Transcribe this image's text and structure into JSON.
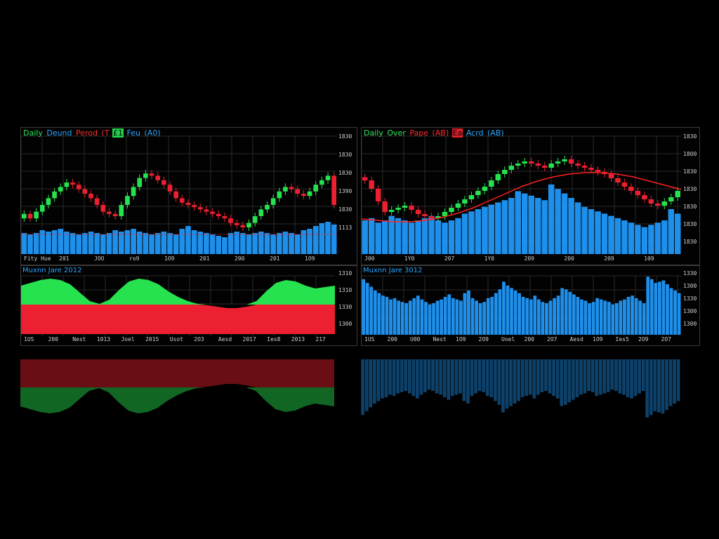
{
  "colors": {
    "up": "#27e24f",
    "down": "#ec2030",
    "volume": "#1e90ec",
    "trend": "#ff2020",
    "grid": "#2a2a2a",
    "price_line": "#e02020"
  },
  "panels": {
    "top_left": {
      "title": [
        {
          "text": "Daily",
          "cls": "t-green"
        },
        {
          "text": "Deund",
          "cls": "t-blue"
        },
        {
          "text": "Perod",
          "cls": "t-red"
        },
        {
          "text": "(T",
          "cls": "t-red"
        },
        {
          "text": "£1",
          "cls": "chip-g"
        },
        {
          "text": "Feu",
          "cls": "t-blue"
        },
        {
          "text": "(A0)",
          "cls": "t-blue"
        }
      ],
      "y_ticks": [
        "1830",
        "1830",
        "1830",
        "1390",
        "1830",
        "1113"
      ],
      "x_ticks": [
        "Fity Hue",
        "201",
        "JOO",
        "ro9",
        "1O9",
        "201",
        "200",
        "201",
        "1O9"
      ],
      "flag_left": "Fity Hue",
      "flag_right": "1830"
    },
    "top_right": {
      "title": [
        {
          "text": "Daily",
          "cls": "t-green"
        },
        {
          "text": "Over",
          "cls": "t-green"
        },
        {
          "text": "Pape",
          "cls": "t-red"
        },
        {
          "text": "(AB)",
          "cls": "t-red"
        },
        {
          "text": "Ea",
          "cls": "chip-r"
        },
        {
          "text": "Acrd",
          "cls": "t-blue"
        },
        {
          "text": "(AB)",
          "cls": "t-blue"
        }
      ],
      "y_ticks": [
        "1830",
        "1800",
        "1830",
        "1830",
        "1830",
        "1830",
        "1830"
      ],
      "x_ticks": [
        "J00",
        "1Y0",
        "207",
        "1Y0",
        "209",
        "200",
        "209",
        "109"
      ]
    },
    "bottom_left": {
      "title": "Muxnn Jare 2012",
      "y_ticks": [
        "1310",
        "1310",
        "1330",
        "1300"
      ],
      "x_ticks": [
        "1US",
        "200",
        "Nest",
        "1013",
        "Joel",
        "2015",
        "Usot",
        "2O3",
        "Aesd",
        "2017",
        "Ies8",
        "2013",
        "217"
      ]
    },
    "bottom_right": {
      "title": "Muxnn Jare 3012",
      "y_ticks": [
        "1330",
        "1300",
        "1330",
        "1300",
        "1300"
      ],
      "x_ticks": [
        "1US",
        "200",
        "U00",
        "Nest",
        "1O9",
        "2O9",
        "Uoel",
        "200",
        "2O7",
        "Aesd",
        "1O9",
        "Ies5",
        "2O9",
        "2O7"
      ]
    }
  },
  "chart_data": [
    {
      "type": "bar",
      "title": "",
      "candles_close": [
        62,
        58,
        64,
        70,
        76,
        82,
        86,
        90,
        88,
        84,
        80,
        76,
        70,
        64,
        62,
        60,
        70,
        78,
        86,
        94,
        98,
        96,
        92,
        88,
        82,
        76,
        72,
        70,
        68,
        66,
        64,
        62,
        60,
        58,
        54,
        52,
        50,
        54,
        60,
        66,
        70,
        76,
        82,
        86,
        84,
        80,
        78,
        82,
        88,
        92,
        96,
        70
      ],
      "volume": [
        30,
        28,
        30,
        34,
        32,
        34,
        36,
        32,
        30,
        28,
        30,
        32,
        30,
        28,
        30,
        34,
        32,
        34,
        36,
        32,
        30,
        28,
        30,
        32,
        30,
        28,
        36,
        40,
        34,
        32,
        30,
        28,
        26,
        24,
        30,
        32,
        30,
        28,
        30,
        32,
        30,
        28,
        30,
        32,
        30,
        28,
        34,
        36,
        40,
        44,
        46,
        42
      ]
    },
    {
      "type": "bar",
      "title": "",
      "candles_close": [
        80,
        72,
        60,
        50,
        52,
        54,
        56,
        52,
        48,
        46,
        44,
        46,
        50,
        54,
        58,
        62,
        66,
        70,
        74,
        80,
        86,
        90,
        94,
        96,
        98,
        96,
        94,
        92,
        96,
        98,
        100,
        96,
        94,
        92,
        90,
        88,
        86,
        82,
        78,
        74,
        70,
        66,
        62,
        58,
        56,
        60,
        64,
        70
      ],
      "volume": [
        30,
        32,
        28,
        30,
        34,
        32,
        30,
        28,
        30,
        32,
        34,
        30,
        28,
        30,
        32,
        36,
        38,
        40,
        42,
        44,
        46,
        48,
        50,
        56,
        54,
        52,
        50,
        48,
        62,
        58,
        54,
        50,
        46,
        42,
        40,
        38,
        36,
        34,
        32,
        30,
        28,
        26,
        24,
        26,
        28,
        30,
        40,
        36
      ],
      "trend": [
        30,
        28,
        26,
        26,
        28,
        32,
        38,
        46,
        56,
        66,
        76,
        84,
        90,
        94,
        96,
        96,
        94,
        90,
        84,
        78,
        72
      ]
    },
    {
      "type": "area",
      "title": "",
      "upper": [
        82,
        86,
        90,
        92,
        90,
        84,
        72,
        60,
        56,
        62,
        76,
        88,
        92,
        90,
        84,
        74,
        66,
        60,
        56,
        54,
        52,
        50,
        50,
        52,
        60,
        74,
        86,
        90,
        88,
        82,
        78,
        80,
        82
      ]
    },
    {
      "type": "bar",
      "title": "",
      "values": [
        88,
        82,
        76,
        70,
        66,
        62,
        60,
        56,
        58,
        54,
        52,
        50,
        54,
        58,
        62,
        56,
        52,
        48,
        50,
        54,
        56,
        60,
        64,
        58,
        56,
        54,
        66,
        70,
        58,
        54,
        50,
        52,
        58,
        60,
        66,
        72,
        84,
        78,
        74,
        70,
        66,
        60,
        58,
        56,
        62,
        56,
        52,
        50,
        54,
        58,
        62,
        74,
        72,
        68,
        64,
        60,
        56,
        54,
        50,
        52,
        58,
        56,
        54,
        52,
        48,
        50,
        54,
        56,
        60,
        62,
        58,
        54,
        50,
        92,
        88,
        82,
        84,
        86,
        80,
        74,
        70,
        66
      ]
    }
  ]
}
